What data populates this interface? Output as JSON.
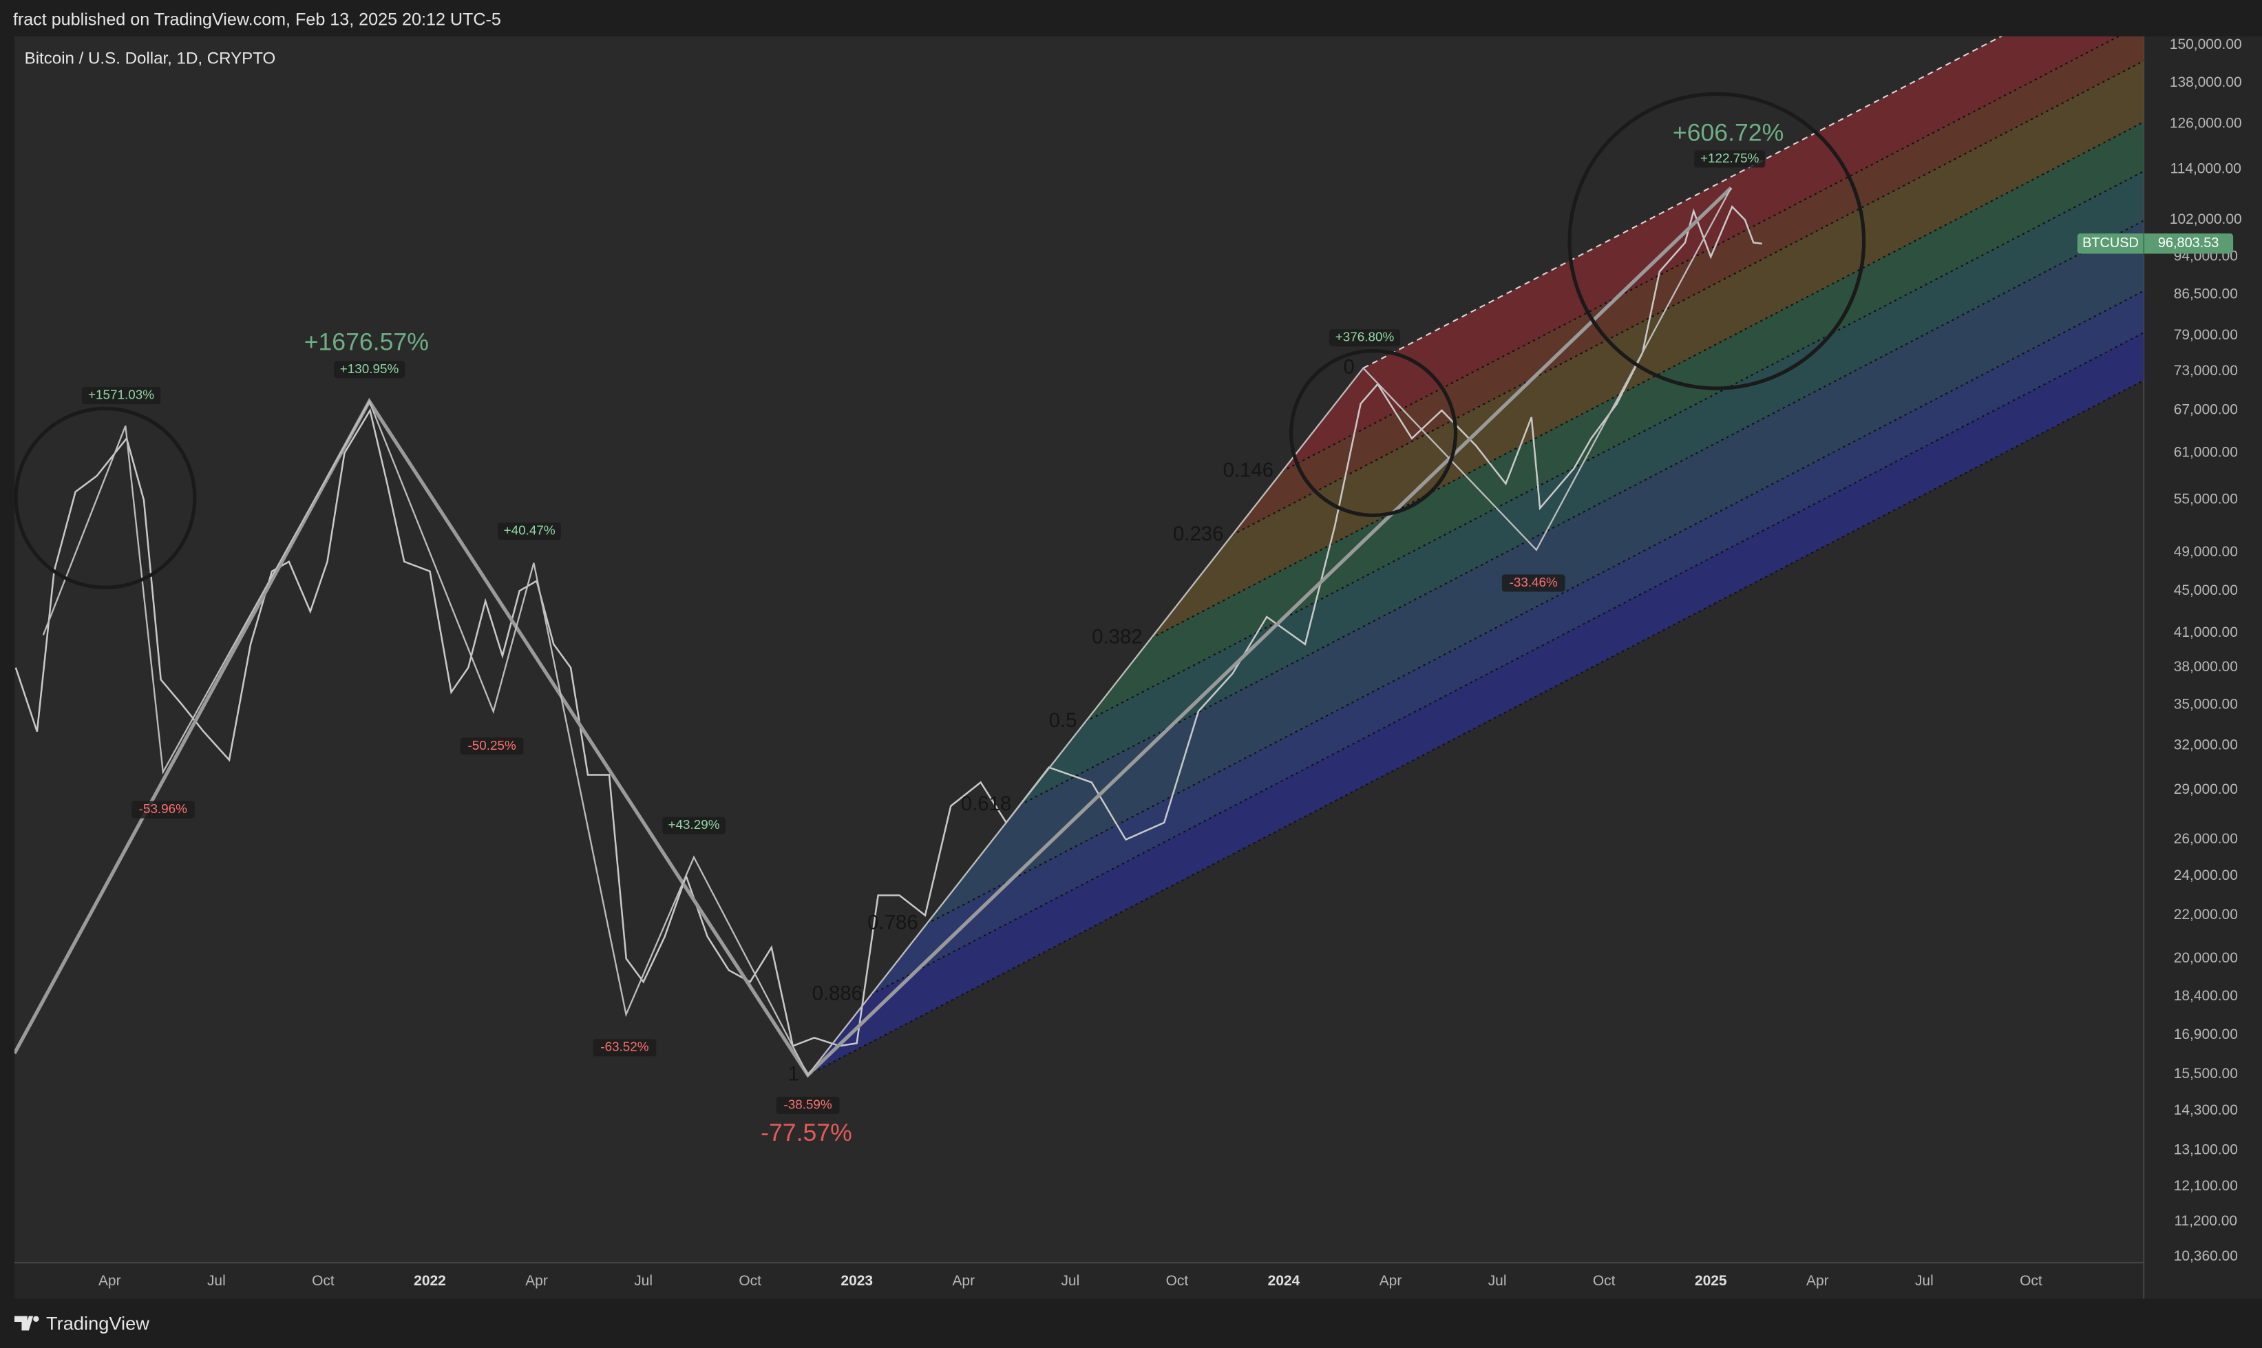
{
  "header": {
    "publisher": "fract published on TradingView.com, Feb 13, 2025 20:12 UTC-5"
  },
  "footer": {
    "brand": "TradingView"
  },
  "chart_data": {
    "type": "line",
    "title": "Bitcoin / U.S. Dollar, 1D, CRYPTO",
    "log_scale": true,
    "x": [
      2021.03,
      2021.08,
      2021.12,
      2021.17,
      2021.22,
      2021.29,
      2021.33,
      2021.37,
      2021.42,
      2021.47,
      2021.53,
      2021.58,
      2021.63,
      2021.67,
      2021.72,
      2021.76,
      2021.8,
      2021.86,
      2021.9,
      2021.94,
      2022.0,
      2022.05,
      2022.09,
      2022.13,
      2022.17,
      2022.21,
      2022.25,
      2022.29,
      2022.33,
      2022.37,
      2022.42,
      2022.46,
      2022.5,
      2022.55,
      2022.6,
      2022.65,
      2022.7,
      2022.75,
      2022.8,
      2022.85,
      2022.9,
      2022.96,
      2023.0,
      2023.05,
      2023.1,
      2023.16,
      2023.22,
      2023.29,
      2023.35,
      2023.45,
      2023.55,
      2023.63,
      2023.72,
      2023.8,
      2023.88,
      2023.96,
      2024.05,
      2024.12,
      2024.18,
      2024.22,
      2024.3,
      2024.37,
      2024.45,
      2024.52,
      2024.58,
      2024.6,
      2024.68,
      2024.72,
      2024.78,
      2024.84,
      2024.88,
      2024.94,
      2024.96,
      2025.0,
      2025.05,
      2025.08,
      2025.1,
      2025.12
    ],
    "series": [
      {
        "name": "BTCUSD",
        "color": "#c9c9c9",
        "values": [
          38000,
          33000,
          47000,
          56000,
          58000,
          63000,
          55000,
          37000,
          35000,
          33000,
          31000,
          40000,
          47000,
          48000,
          43000,
          48000,
          61000,
          67000,
          57000,
          48000,
          47000,
          36000,
          38000,
          44000,
          39000,
          45000,
          46000,
          40000,
          38000,
          30000,
          30000,
          20000,
          19000,
          21000,
          24000,
          21000,
          19500,
          19000,
          20500,
          16500,
          16800,
          16500,
          16600,
          23000,
          23000,
          22000,
          28000,
          29500,
          27000,
          30500,
          29500,
          26000,
          27000,
          34500,
          37500,
          42500,
          40000,
          52000,
          68000,
          71000,
          63000,
          67000,
          62000,
          57000,
          66000,
          54000,
          59000,
          63000,
          68000,
          76000,
          91000,
          97000,
          104000,
          94000,
          105000,
          102000,
          97000,
          96803.53
        ]
      }
    ],
    "last_price": {
      "value": 96803.53,
      "label": "96,803.53"
    },
    "xlim": [
      2021.027,
      2026.014
    ],
    "xticks": [
      {
        "value": 2021.25,
        "label": "Apr"
      },
      {
        "value": 2021.5,
        "label": "Jul"
      },
      {
        "value": 2021.75,
        "label": "Oct"
      },
      2022,
      {
        "value": 2022.25,
        "label": "Apr"
      },
      {
        "value": 2022.5,
        "label": "Jul"
      },
      {
        "value": 2022.75,
        "label": "Oct"
      },
      2023,
      {
        "value": 2023.25,
        "label": "Apr"
      },
      {
        "value": 2023.5,
        "label": "Jul"
      },
      {
        "value": 2023.75,
        "label": "Oct"
      },
      2024,
      {
        "value": 2024.25,
        "label": "Apr"
      },
      {
        "value": 2024.5,
        "label": "Jul"
      },
      {
        "value": 2024.75,
        "label": "Oct"
      },
      2025,
      {
        "value": 2025.25,
        "label": "Apr"
      },
      {
        "value": 2025.5,
        "label": "Jul"
      },
      {
        "value": 2025.75,
        "label": "Oct"
      }
    ],
    "ylim": [
      10230,
      152900
    ],
    "yticks": [
      {
        "value": 150000,
        "label": "150,000.00"
      },
      {
        "value": 138000,
        "label": "138,000.00"
      },
      {
        "value": 126000,
        "label": "126,000.00"
      },
      {
        "value": 114000,
        "label": "114,000.00"
      },
      {
        "value": 102000,
        "label": "102,000.00"
      },
      {
        "value": 94000,
        "label": "94,000.00"
      },
      {
        "value": 86500,
        "label": "86,500.00"
      },
      {
        "value": 79000,
        "label": "79,000.00"
      },
      {
        "value": 73000,
        "label": "73,000.00"
      },
      {
        "value": 67000,
        "label": "67,000.00"
      },
      {
        "value": 61000,
        "label": "61,000.00"
      },
      {
        "value": 55000,
        "label": "55,000.00"
      },
      {
        "value": 49000,
        "label": "49,000.00"
      },
      {
        "value": 45000,
        "label": "45,000.00"
      },
      {
        "value": 41000,
        "label": "41,000.00"
      },
      {
        "value": 38000,
        "label": "38,000.00"
      },
      {
        "value": 35000,
        "label": "35,000.00"
      },
      {
        "value": 32000,
        "label": "32,000.00"
      },
      {
        "value": 29000,
        "label": "29,000.00"
      },
      {
        "value": 26000,
        "label": "26,000.00"
      },
      {
        "value": 24000,
        "label": "24,000.00"
      },
      {
        "value": 22000,
        "label": "22,000.00"
      },
      {
        "value": 20000,
        "label": "20,000.00"
      },
      {
        "value": 18400,
        "label": "18,400.00"
      },
      {
        "value": 16900,
        "label": "16,900.00"
      },
      {
        "value": 15500,
        "label": "15,500.00"
      },
      {
        "value": 14300,
        "label": "14,300.00"
      },
      {
        "value": 13100,
        "label": "13,100.00"
      },
      {
        "value": 12100,
        "label": "12,100.00"
      },
      {
        "value": 11200,
        "label": "11,200.00"
      },
      {
        "value": 10360,
        "label": "10,360.00"
      }
    ],
    "fib_levels": [
      0,
      0.146,
      0.236,
      0.382,
      0.5,
      0.618,
      0.786,
      0.886,
      1
    ],
    "annotations": [
      "+1571.03%",
      "-53.96%",
      "+1676.57%",
      "+130.95%",
      "+40.47%",
      "-50.25%",
      "+43.29%",
      "-63.52%",
      "-38.59%",
      "-77.57%",
      "+376.80%",
      "-33.46%",
      "+606.72%",
      "+122.75%"
    ]
  }
}
